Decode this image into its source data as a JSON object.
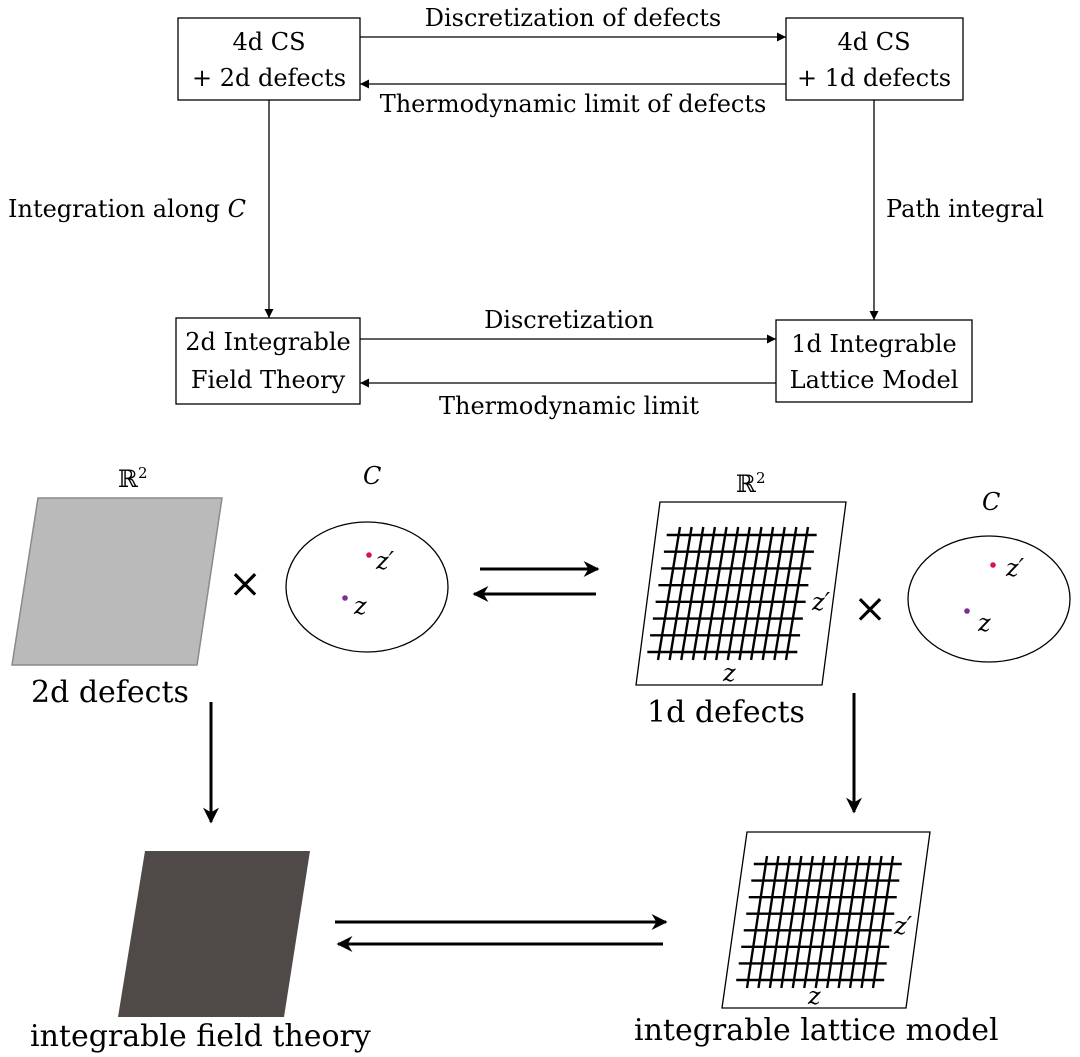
{
  "top_diagram": {
    "box_tl": {
      "line1": "4d CS",
      "line2": "+ 2d defects"
    },
    "box_tr": {
      "line1": "4d CS",
      "line2": "+ 1d defects"
    },
    "box_bl": {
      "line1": "2d Integrable",
      "line2": "Field Theory"
    },
    "box_br": {
      "line1": "1d Integrable",
      "line2": "Lattice Model"
    },
    "arrow_top_right": "Discretization of defects",
    "arrow_top_left": "Thermodynamic limit of defects",
    "arrow_left_down": "Integration along ",
    "arrow_left_down_math": "C",
    "arrow_right_down": "Path integral",
    "arrow_bottom_right": "Discretization",
    "arrow_bottom_left": "Thermodynamic limit"
  },
  "bottom_diagram": {
    "r2_label": "ℝ",
    "r2_exponent": "2",
    "curve_label": "C",
    "point_z": "z",
    "point_zprime": "z′",
    "times": "×",
    "caption_2d": "2d defects",
    "caption_1d": "1d defects",
    "caption_field": "integrable field theory",
    "caption_lattice": "integrable lattice model",
    "colors": {
      "plane_light": "#bababa",
      "plane_dark": "#4f4a47",
      "point_zprime": "#d4145a",
      "point_z": "#7b2f8e"
    }
  }
}
